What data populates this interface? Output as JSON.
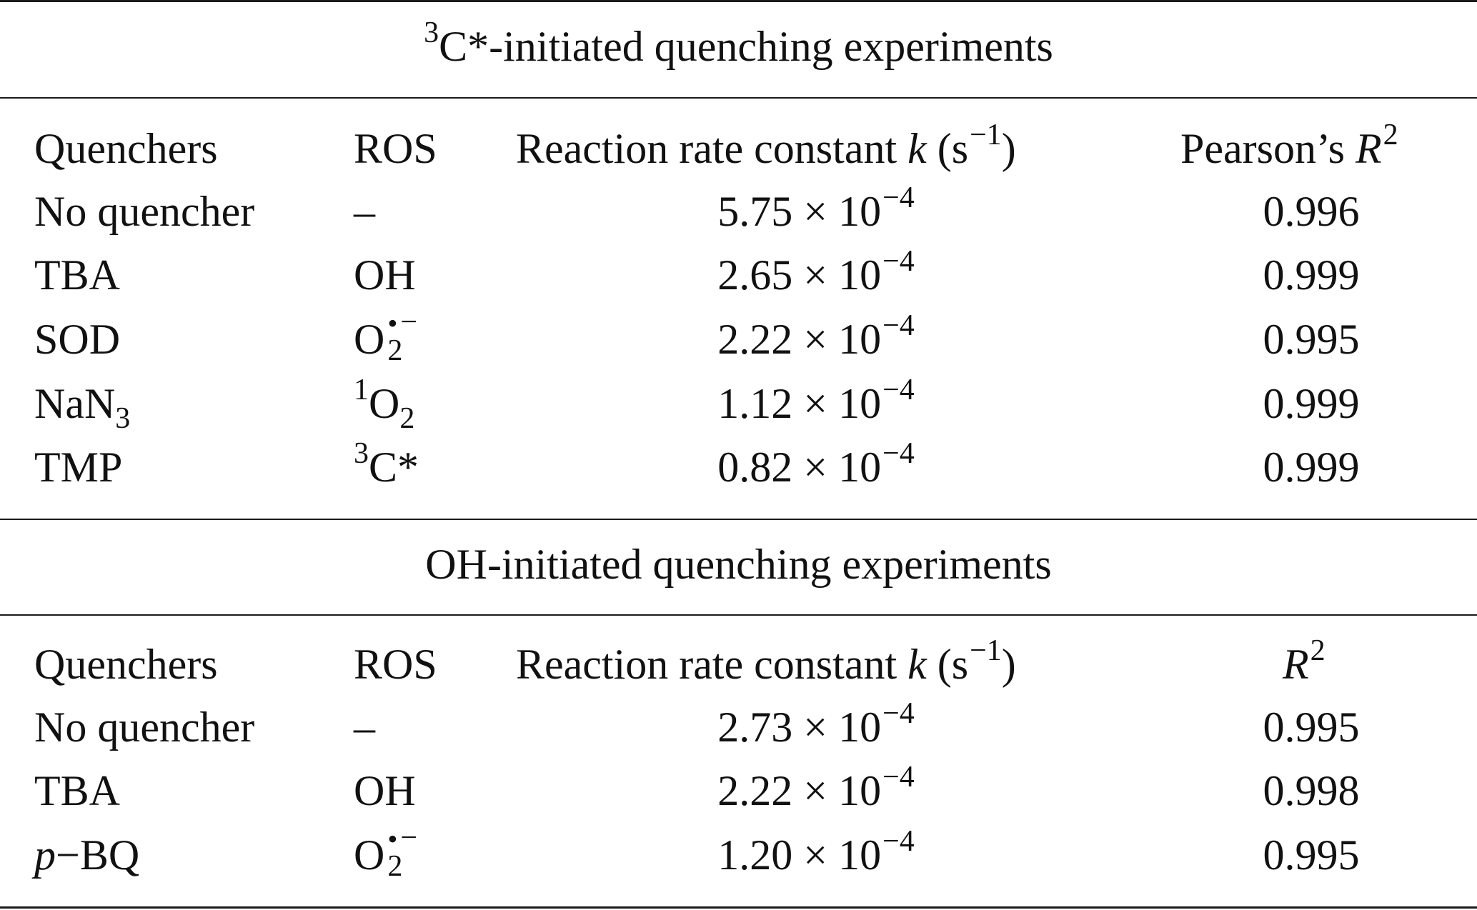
{
  "table": {
    "sections": [
      {
        "title_sup": "3",
        "title_main": "C*-initiated quenching experiments",
        "header": {
          "quenchers": "Quenchers",
          "ros": "ROS",
          "rate_label": "Reaction rate constant ",
          "rate_var": "k",
          "rate_unit_open": " (s",
          "rate_unit_exp": "−1",
          "rate_unit_close": ")",
          "fit_label": "Pearson’s ",
          "fit_var": "R",
          "fit_exp": "2"
        },
        "rows": [
          {
            "quencher": "No quencher",
            "ros": "–",
            "k_mantissa": "5.75 × 10",
            "k_exp": "−4",
            "r2": "0.996"
          },
          {
            "quencher": "TBA",
            "ros": "OH",
            "k_mantissa": "2.65 × 10",
            "k_exp": "−4",
            "r2": "0.999"
          },
          {
            "quencher": "SOD",
            "ros_base": "O",
            "ros_sub": "2",
            "ros_sup_dot": "•",
            "ros_sup_charge": "−",
            "k_mantissa": "2.22 × 10",
            "k_exp": "−4",
            "r2": "0.995"
          },
          {
            "quencher_base": "NaN",
            "quencher_sub": "3",
            "ros_pre_sup": "1",
            "ros_base": "O",
            "ros_sub": "2",
            "k_mantissa": "1.12 × 10",
            "k_exp": "−4",
            "r2": "0.999"
          },
          {
            "quencher": "TMP",
            "ros_pre_sup": "3",
            "ros_base": "C*",
            "k_mantissa": "0.82 × 10",
            "k_exp": "−4",
            "r2": "0.999"
          }
        ]
      },
      {
        "title_main": "OH-initiated quenching experiments",
        "header": {
          "quenchers": "Quenchers",
          "ros": "ROS",
          "rate_label": "Reaction rate constant ",
          "rate_var": "k",
          "rate_unit_open": " (s",
          "rate_unit_exp": "−1",
          "rate_unit_close": ")",
          "fit_var": "R",
          "fit_exp": "2"
        },
        "rows": [
          {
            "quencher": "No quencher",
            "ros": "–",
            "k_mantissa": "2.73 × 10",
            "k_exp": "−4",
            "r2": "0.995"
          },
          {
            "quencher": "TBA",
            "ros": "OH",
            "k_mantissa": "2.22 × 10",
            "k_exp": "−4",
            "r2": "0.998"
          },
          {
            "quencher_ital": "p",
            "quencher_rest": "−BQ",
            "ros_base": "O",
            "ros_sub": "2",
            "ros_sup_dot": "•",
            "ros_sup_charge": "−",
            "k_mantissa": "1.20 × 10",
            "k_exp": "−4",
            "r2": "0.995"
          }
        ]
      }
    ]
  }
}
